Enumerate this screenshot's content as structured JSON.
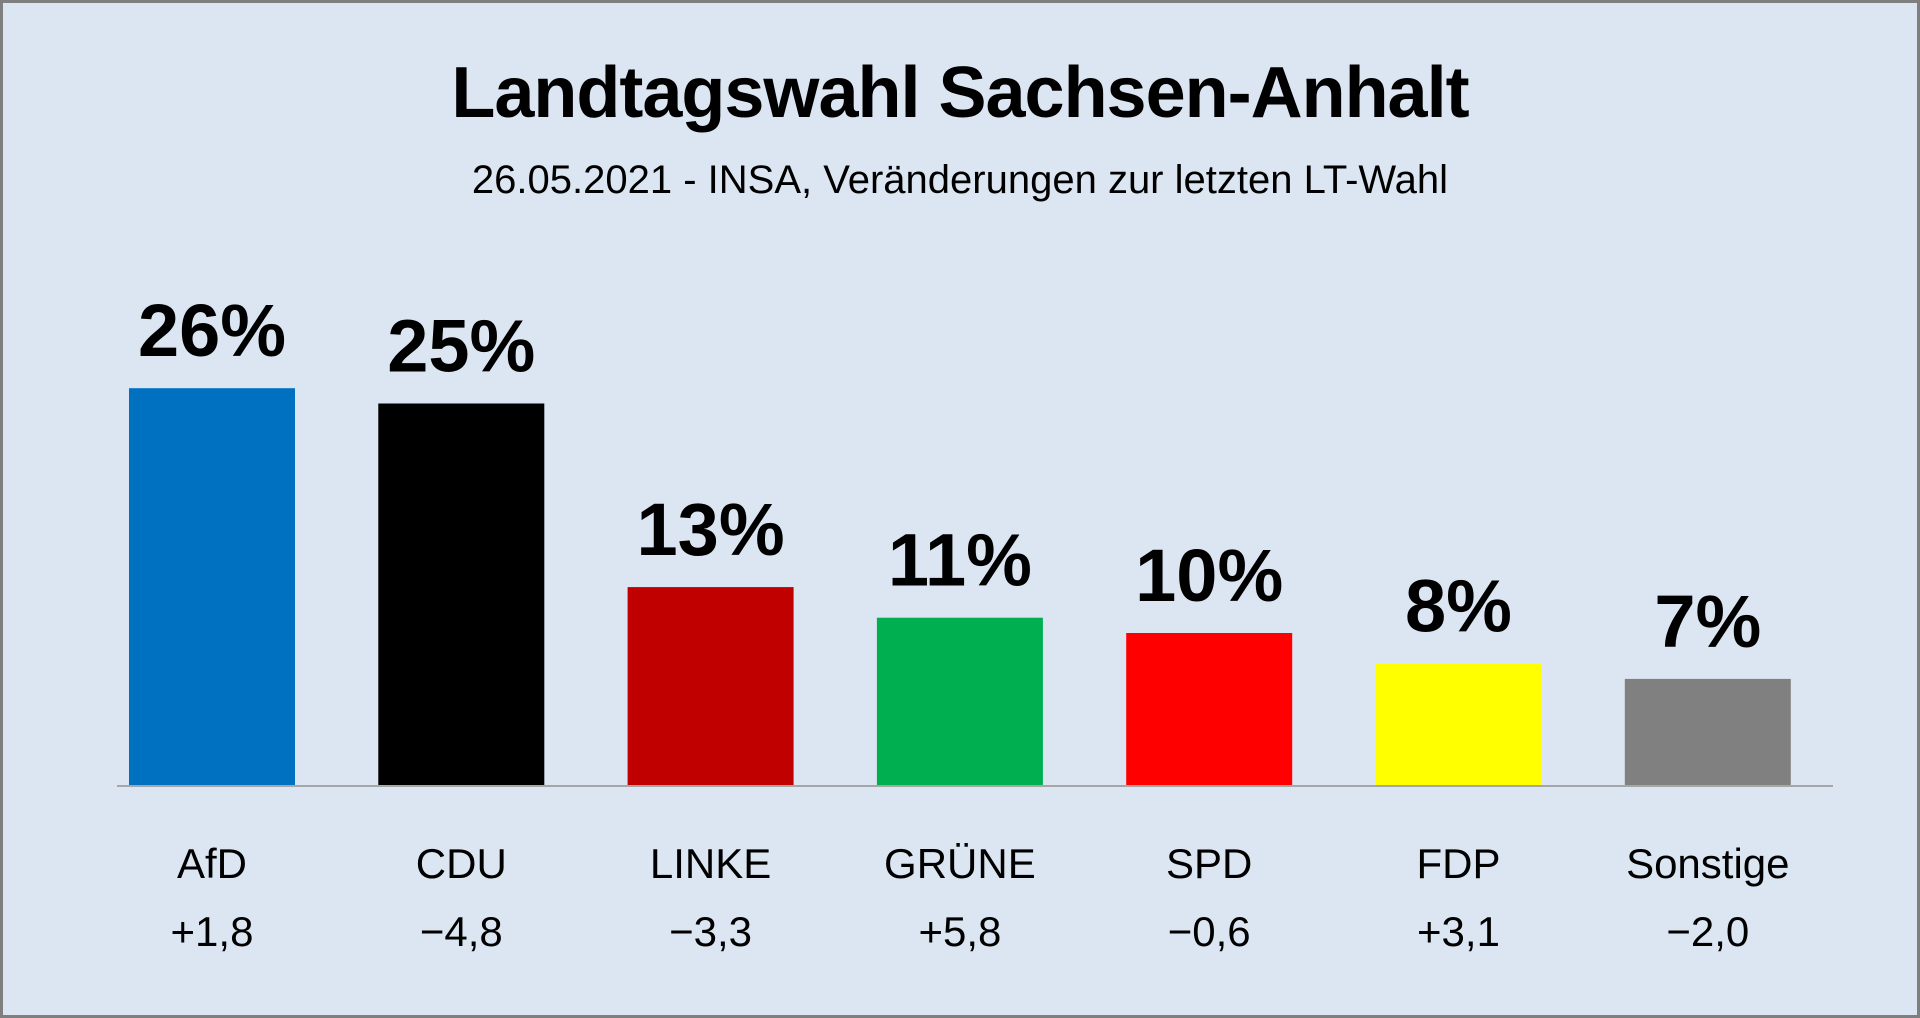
{
  "chart_data": {
    "type": "bar",
    "title": "Landtagswahl Sachsen-Anhalt",
    "subtitle": "26.05.2021 - INSA, Veränderungen zur letzten LT-Wahl",
    "categories": [
      "AfD",
      "CDU",
      "LINKE",
      "GRÜNE",
      "SPD",
      "FDP",
      "Sonstige"
    ],
    "values": [
      26,
      25,
      13,
      11,
      10,
      8,
      7
    ],
    "value_labels": [
      "26%",
      "25%",
      "13%",
      "11%",
      "10%",
      "8%",
      "7%"
    ],
    "changes": [
      "+1,8",
      "−4,8",
      "−3,3",
      "+5,8",
      "−0,6",
      "+3,1",
      "−2,0"
    ],
    "colors": [
      "#0070c0",
      "#000000",
      "#c00000",
      "#00b050",
      "#ff0000",
      "#ffff00",
      "#808080"
    ],
    "xlabel": "",
    "ylabel": "",
    "ylim": [
      0,
      30
    ],
    "grid": false,
    "legend": "none"
  },
  "colors": {
    "background": "#dce6f2",
    "border": "#7f7f7f",
    "axis": "#a6a6a6"
  }
}
